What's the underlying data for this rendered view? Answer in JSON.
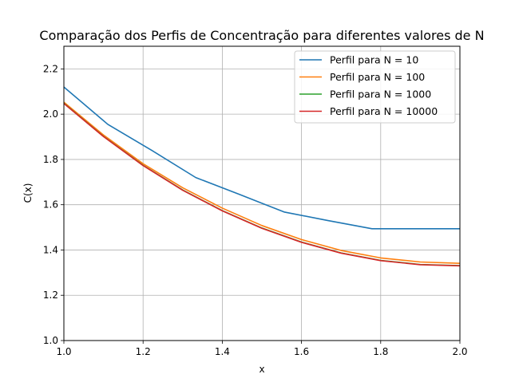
{
  "chart_data": {
    "type": "line",
    "title": "Comparação dos Perfis de Concentração para diferentes valores de N",
    "xlabel": "x",
    "ylabel": "C(x)",
    "xlim": [
      1.0,
      2.0
    ],
    "ylim": [
      1.0,
      2.3
    ],
    "xticks": [
      1.0,
      1.2,
      1.4,
      1.6,
      1.8,
      2.0
    ],
    "xtick_labels": [
      "1.0",
      "1.2",
      "1.4",
      "1.6",
      "1.8",
      "2.0"
    ],
    "yticks": [
      1.0,
      1.2,
      1.4,
      1.6,
      1.8,
      2.0,
      2.2
    ],
    "ytick_labels": [
      "1.0",
      "1.2",
      "1.4",
      "1.6",
      "1.8",
      "2.0",
      "2.2"
    ],
    "grid": true,
    "legend_position": "top-right",
    "series": [
      {
        "name": "Perfil para N = 10",
        "color": "#1f77b4",
        "x": [
          1.0,
          1.111,
          1.222,
          1.333,
          1.444,
          1.556,
          1.667,
          1.778,
          1.889,
          2.0
        ],
        "y": [
          2.12,
          1.955,
          1.84,
          1.72,
          1.645,
          1.568,
          1.53,
          1.494,
          1.494,
          1.494
        ]
      },
      {
        "name": "Perfil para N = 100",
        "color": "#ff7f0e",
        "x": [
          1.0,
          1.1,
          1.2,
          1.3,
          1.4,
          1.5,
          1.6,
          1.7,
          1.8,
          1.9,
          2.0
        ],
        "y": [
          2.053,
          1.908,
          1.781,
          1.675,
          1.585,
          1.508,
          1.446,
          1.398,
          1.365,
          1.347,
          1.341
        ]
      },
      {
        "name": "Perfil para N = 1000",
        "color": "#2ca02c",
        "x": [
          1.0,
          1.1,
          1.2,
          1.3,
          1.4,
          1.5,
          1.6,
          1.7,
          1.8,
          1.9,
          2.0
        ],
        "y": [
          2.048,
          1.902,
          1.774,
          1.665,
          1.574,
          1.497,
          1.435,
          1.387,
          1.354,
          1.336,
          1.331
        ]
      },
      {
        "name": "Perfil para N = 10000",
        "color": "#d62728",
        "x": [
          1.0,
          1.1,
          1.2,
          1.3,
          1.4,
          1.5,
          1.6,
          1.7,
          1.8,
          1.9,
          2.0
        ],
        "y": [
          2.047,
          1.901,
          1.773,
          1.664,
          1.573,
          1.496,
          1.434,
          1.386,
          1.353,
          1.335,
          1.33
        ]
      }
    ]
  }
}
